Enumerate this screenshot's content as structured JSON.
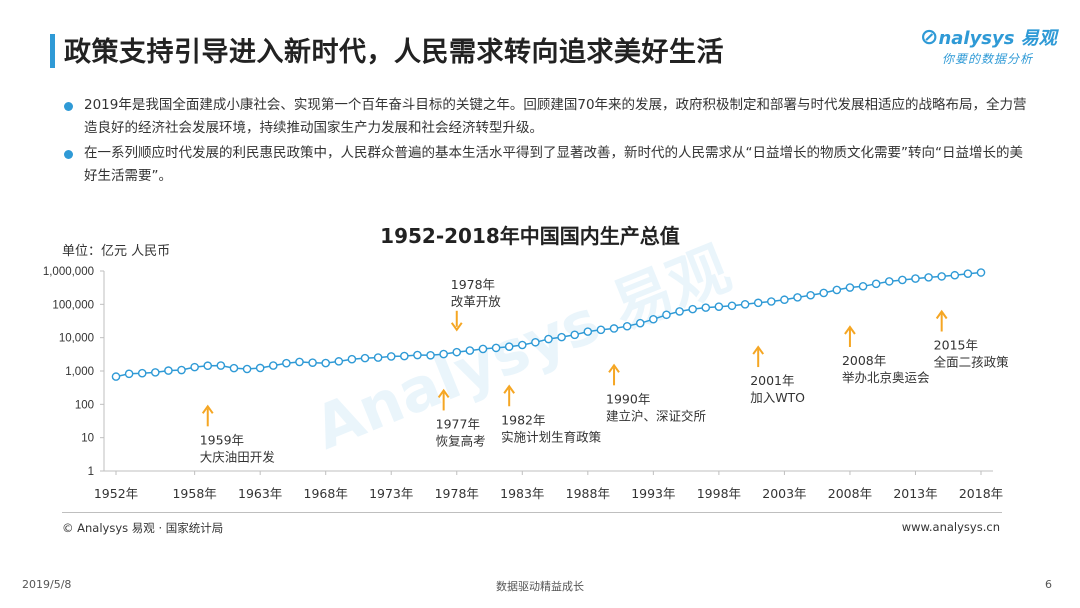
{
  "header": {
    "title": "政策支持引导进入新时代，人民需求转向追求美好生活",
    "logo_main": "nalysys 易观",
    "logo_sub": "你要的数据分析"
  },
  "bullets": [
    "2019年是我国全面建成小康社会、实现第一个百年奋斗目标的关键之年。回顾建国70年来的发展，政府积极制定和部署与时代发展相适应的战略布局，全力营造良好的经济社会发展环境，持续推动国家生产力发展和社会经济转型升级。",
    "在一系列顺应时代发展的利民惠民政策中，人民群众普遍的基本生活水平得到了显著改善，新时代的人民需求从“日益增长的物质文化需要”转向“日益增长的美好生活需要”。"
  ],
  "chart_data": {
    "type": "line",
    "title": "1952-2018年中国国内生产总值",
    "unit": "单位：亿元 人民币",
    "yscale": "log",
    "ylim": [
      1,
      1000000
    ],
    "yticks": [
      "1",
      "10",
      "100",
      "1,000",
      "10,000",
      "100,000",
      "1,000,000"
    ],
    "xticks": [
      "1952年",
      "1958年",
      "1963年",
      "1968年",
      "1973年",
      "1978年",
      "1983年",
      "1988年",
      "1993年",
      "1998年",
      "2003年",
      "2008年",
      "2013年",
      "2018年"
    ],
    "series": [
      {
        "x": [
          1952,
          1953,
          1954,
          1955,
          1956,
          1957,
          1958,
          1959,
          1960,
          1961,
          1962,
          1963,
          1964,
          1965,
          1966,
          1967,
          1968,
          1969,
          1970,
          1971,
          1972,
          1973,
          1974,
          1975,
          1976,
          1977,
          1978,
          1979,
          1980,
          1981,
          1982,
          1983,
          1984,
          1985,
          1986,
          1987,
          1988,
          1989,
          1990,
          1991,
          1992,
          1993,
          1994,
          1995,
          1996,
          1997,
          1998,
          1999,
          2000,
          2001,
          2002,
          2003,
          2004,
          2005,
          2006,
          2007,
          2008,
          2009,
          2010,
          2011,
          2012,
          2013,
          2014,
          2015,
          2016,
          2017,
          2018
        ],
        "y": [
          679,
          824,
          859,
          910,
          1028,
          1069,
          1308,
          1440,
          1457,
          1220,
          1149,
          1233,
          1454,
          1717,
          1873,
          1780,
          1730,
          1946,
          2261,
          2435,
          2530,
          2733,
          2803,
          3013,
          2961,
          3221,
          3679,
          4101,
          4588,
          4936,
          5373,
          6021,
          7279,
          9099,
          10376,
          12175,
          15180,
          17180,
          18873,
          22006,
          27195,
          35673,
          48638,
          61340,
          71814,
          79715,
          85196,
          90564,
          100280,
          110863,
          121717,
          137422,
          161840,
          187319,
          219439,
          270092,
          319245,
          348518,
          412119,
          487940,
          538580,
          592963,
          643563,
          688858,
          746395,
          832036,
          900309
        ],
        "color": "#2f9ad6"
      }
    ],
    "annotations": [
      {
        "year": 1959,
        "y_level": 100,
        "label": "1959年\n大庆油田开发",
        "side": "below"
      },
      {
        "year": 1977,
        "y_level": 300,
        "label": "1977年\n恢复高考",
        "side": "below"
      },
      {
        "year": 1978,
        "y_level": 14000,
        "label": "1978年\n改革开放",
        "side": "above"
      },
      {
        "year": 1982,
        "y_level": 400,
        "label": "1982年\n实施计划生育政策",
        "side": "below"
      },
      {
        "year": 1990,
        "y_level": 1700,
        "label": "1990年\n建立沪、深证交所",
        "side": "below"
      },
      {
        "year": 2001,
        "y_level": 6000,
        "label": "2001年\n加入WTO",
        "side": "below"
      },
      {
        "year": 2008,
        "y_level": 24000,
        "label": "2008年\n举办北京奥运会",
        "side": "below"
      },
      {
        "year": 2015,
        "y_level": 70000,
        "label": "2015年\n全面二孩政策",
        "side": "below"
      }
    ],
    "annotation_color": "#f5a623"
  },
  "footer": {
    "source": "© Analysys 易观 · 国家统计局",
    "site": "www.analysys.cn",
    "date": "2019/5/8",
    "slogan": "数据驱动精益成长",
    "page": "6"
  }
}
